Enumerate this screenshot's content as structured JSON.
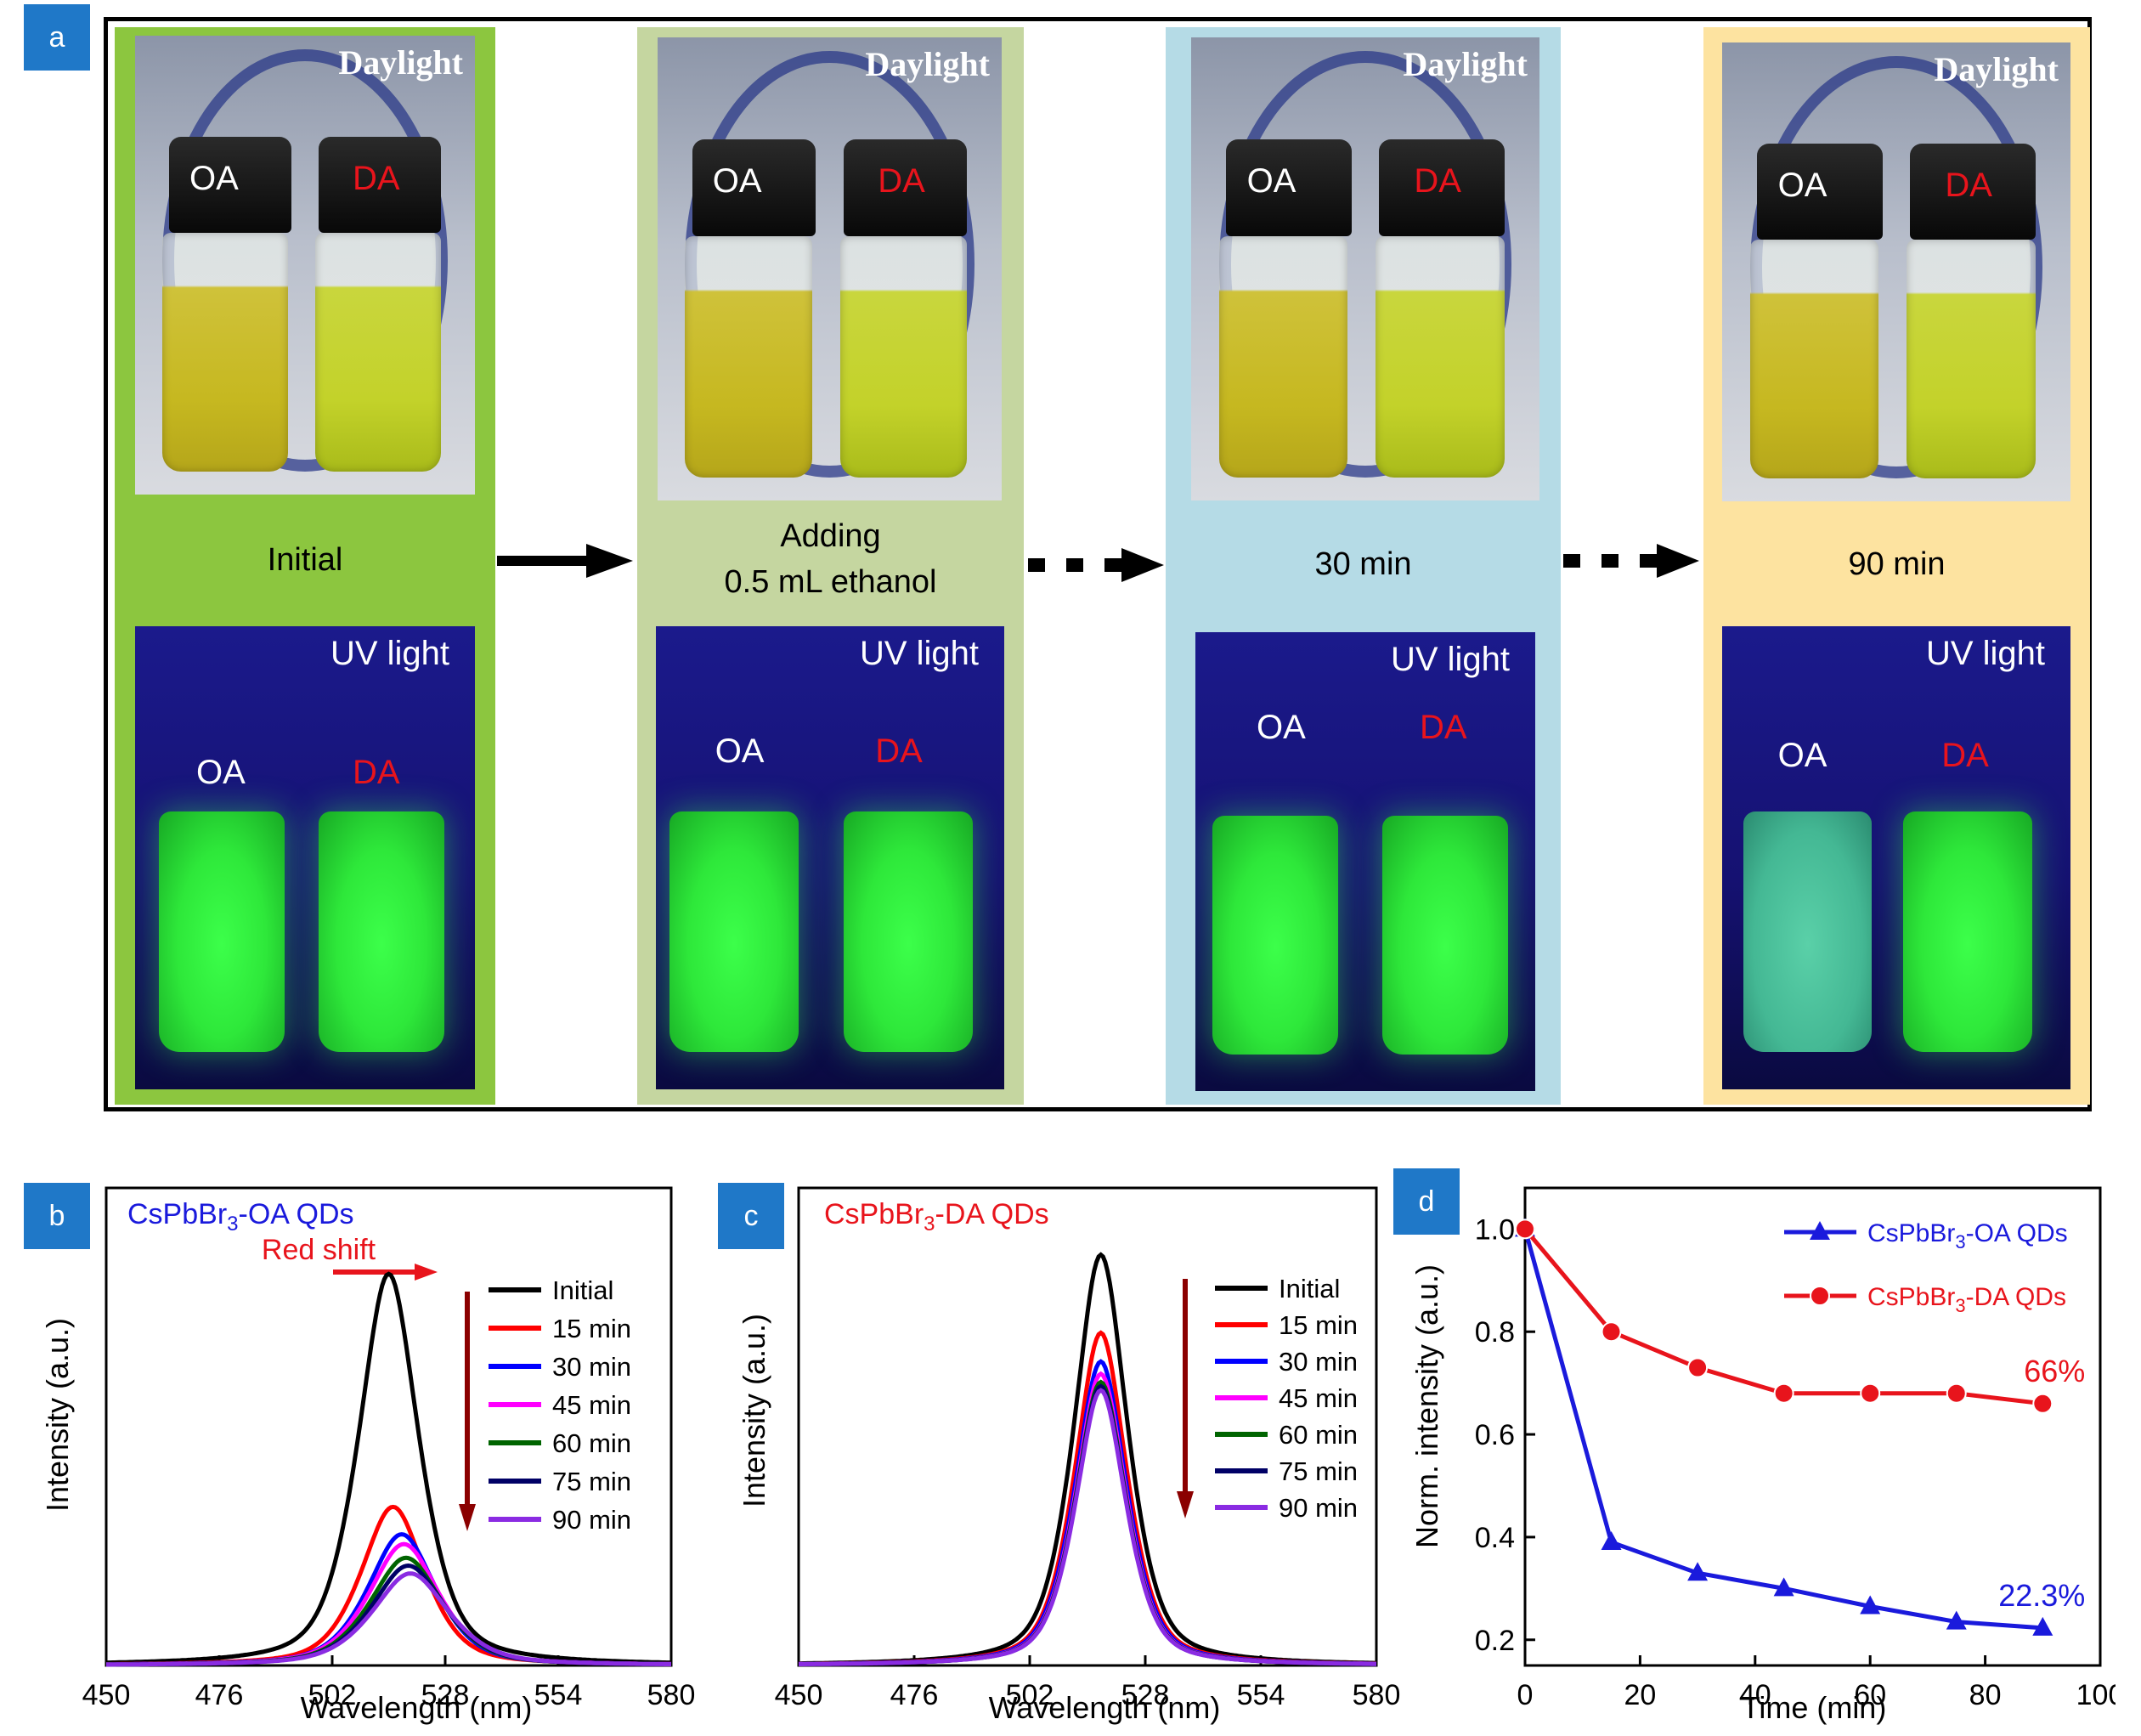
{
  "panel_a": {
    "tag": "a",
    "stages": [
      {
        "caption_lines": [
          "Initial"
        ],
        "bg": "#8cc63f",
        "daylight_label": "Daylight",
        "uv_label": "UV light",
        "vial_left": "OA",
        "vial_right": "DA"
      },
      {
        "caption_lines": [
          "Adding",
          "0.5 mL ethanol"
        ],
        "bg": "#c5d6a0",
        "daylight_label": "Daylight",
        "uv_label": "UV light",
        "vial_left": "OA",
        "vial_right": "DA"
      },
      {
        "caption_lines": [
          "30 min"
        ],
        "bg": "#b5dbe6",
        "daylight_label": "Daylight",
        "uv_label": "UV light",
        "vial_left": "OA",
        "vial_right": "DA"
      },
      {
        "caption_lines": [
          "90 min"
        ],
        "bg": "#fde3a0",
        "daylight_label": "Daylight",
        "uv_label": "UV light",
        "vial_left": "OA",
        "vial_right": "DA"
      }
    ]
  },
  "colors": {
    "tag_blue": "#1f78c8",
    "oa_blue": "#1a1adc",
    "da_red": "#e8141c",
    "arrow_dark_red": "#8b0000"
  },
  "chart_data": [
    {
      "type": "line",
      "tag": "b",
      "title": "CsPbBr3-OA QDs",
      "title_main": "CsPbBr",
      "title_sub": "3",
      "title_rest": "-OA QDs",
      "annotation": "Red shift",
      "xlabel": "Wavelength (nm)",
      "ylabel": "Intensity (a.u.)",
      "xlim": [
        450,
        580
      ],
      "xticks": [
        450,
        476,
        502,
        528,
        554,
        580
      ],
      "series": [
        {
          "name": "Initial",
          "color": "#000000",
          "peak_x": 515,
          "peak_y": 1.0,
          "width": 7.5
        },
        {
          "name": "15 min",
          "color": "#ff0000",
          "peak_x": 516,
          "peak_y": 0.405,
          "width": 8.0
        },
        {
          "name": "30 min",
          "color": "#0000ff",
          "peak_x": 518,
          "peak_y": 0.335,
          "width": 8.5
        },
        {
          "name": "45 min",
          "color": "#ff00ff",
          "peak_x": 518.5,
          "peak_y": 0.31,
          "width": 8.8
        },
        {
          "name": "60 min",
          "color": "#006400",
          "peak_x": 519,
          "peak_y": 0.275,
          "width": 9.0
        },
        {
          "name": "75 min",
          "color": "#000066",
          "peak_x": 519.5,
          "peak_y": 0.255,
          "width": 9.2
        },
        {
          "name": "90 min",
          "color": "#8a2be2",
          "peak_x": 520,
          "peak_y": 0.235,
          "width": 9.5
        }
      ]
    },
    {
      "type": "line",
      "tag": "c",
      "title": "CsPbBr3-DA QDs",
      "title_main": "CsPbBr",
      "title_sub": "3",
      "title_rest": "-DA QDs",
      "xlabel": "Wavelength (nm)",
      "ylabel": "Intensity (a.u.)",
      "xlim": [
        450,
        580
      ],
      "xticks": [
        450,
        476,
        502,
        528,
        554,
        580
      ],
      "series": [
        {
          "name": "Initial",
          "color": "#000000",
          "peak_x": 518,
          "peak_y": 1.0,
          "width": 6.5
        },
        {
          "name": "15 min",
          "color": "#ff0000",
          "peak_x": 518,
          "peak_y": 0.81,
          "width": 6.3
        },
        {
          "name": "30 min",
          "color": "#0000ff",
          "peak_x": 518,
          "peak_y": 0.74,
          "width": 6.3
        },
        {
          "name": "45 min",
          "color": "#ff00ff",
          "peak_x": 518,
          "peak_y": 0.71,
          "width": 6.2
        },
        {
          "name": "60 min",
          "color": "#006400",
          "peak_x": 518,
          "peak_y": 0.69,
          "width": 6.2
        },
        {
          "name": "75 min",
          "color": "#000066",
          "peak_x": 518,
          "peak_y": 0.68,
          "width": 6.2
        },
        {
          "name": "90 min",
          "color": "#8a2be2",
          "peak_x": 518,
          "peak_y": 0.67,
          "width": 6.2
        }
      ]
    },
    {
      "type": "line",
      "tag": "d",
      "xlabel": "Time (min)",
      "ylabel": "Norm. intensity (a.u.)",
      "xlim": [
        0,
        100
      ],
      "ylim": [
        0.15,
        1.08
      ],
      "xticks": [
        0,
        20,
        40,
        60,
        80,
        100
      ],
      "yticks": [
        0.2,
        0.4,
        0.6,
        0.8,
        1.0
      ],
      "yticklabels": [
        "0.2",
        "0.4",
        "0.6",
        "0.8",
        "1.0"
      ],
      "x": [
        0,
        15,
        30,
        45,
        60,
        75,
        90
      ],
      "series": [
        {
          "name": "CsPbBr3-OA QDs",
          "legend_main": "CsPbBr",
          "legend_sub": "3",
          "legend_rest": "-OA QDs",
          "color": "#1a1adc",
          "marker": "triangle",
          "values": [
            1.0,
            0.39,
            0.33,
            0.3,
            0.265,
            0.235,
            0.223
          ],
          "end_label": "22.3%"
        },
        {
          "name": "CsPbBr3-DA QDs",
          "legend_main": "CsPbBr",
          "legend_sub": "3",
          "legend_rest": "-DA QDs",
          "color": "#e8141c",
          "marker": "circle",
          "values": [
            1.0,
            0.8,
            0.73,
            0.68,
            0.68,
            0.68,
            0.66
          ],
          "end_label": "66%"
        }
      ]
    }
  ]
}
